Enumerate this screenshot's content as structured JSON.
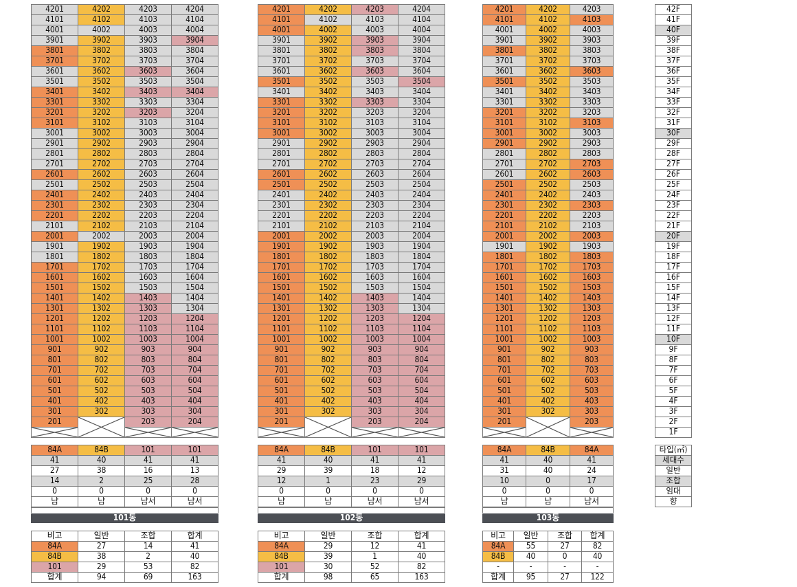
{
  "colors": {
    "orange": "#ef9056",
    "yellow": "#f5bd45",
    "pink": "#dba5a8",
    "gray": "#d9d9d9",
    "white": "#ffffff",
    "dark": "#4c4f55"
  },
  "buildings": [
    {
      "name": "101동",
      "units": {
        "42": [
          "g",
          "y",
          "g",
          "g"
        ],
        "41": [
          "g",
          "y",
          "g",
          "g"
        ],
        "40": [
          "g",
          "g",
          "g",
          "g"
        ],
        "39": [
          "g",
          "y",
          "g",
          "p"
        ],
        "38": [
          "o",
          "y",
          "g",
          "g"
        ],
        "37": [
          "o",
          "y",
          "g",
          "g"
        ],
        "36": [
          "g",
          "y",
          "p",
          "g"
        ],
        "35": [
          "g",
          "y",
          "g",
          "g"
        ],
        "34": [
          "o",
          "y",
          "p",
          "p"
        ],
        "33": [
          "o",
          "y",
          "g",
          "g"
        ],
        "32": [
          "o",
          "y",
          "p",
          "g"
        ],
        "31": [
          "o",
          "y",
          "g",
          "g"
        ],
        "30": [
          "g",
          "y",
          "g",
          "g"
        ],
        "29": [
          "g",
          "y",
          "g",
          "g"
        ],
        "28": [
          "g",
          "y",
          "g",
          "g"
        ],
        "27": [
          "g",
          "y",
          "g",
          "g"
        ],
        "26": [
          "o",
          "y",
          "g",
          "g"
        ],
        "25": [
          "g",
          "y",
          "g",
          "g"
        ],
        "24": [
          "o",
          "y",
          "g",
          "g"
        ],
        "23": [
          "o",
          "y",
          "g",
          "g"
        ],
        "22": [
          "o",
          "y",
          "g",
          "g"
        ],
        "21": [
          "g",
          "y",
          "g",
          "g"
        ],
        "20": [
          "o",
          "g",
          "g",
          "g"
        ],
        "19": [
          "g",
          "y",
          "g",
          "g"
        ],
        "18": [
          "g",
          "y",
          "g",
          "g"
        ],
        "17": [
          "o",
          "y",
          "g",
          "g"
        ],
        "16": [
          "o",
          "y",
          "g",
          "g"
        ],
        "15": [
          "o",
          "y",
          "g",
          "g"
        ],
        "14": [
          "o",
          "y",
          "p",
          "g"
        ],
        "13": [
          "o",
          "y",
          "p",
          "g"
        ],
        "12": [
          "o",
          "y",
          "p",
          "p"
        ],
        "11": [
          "o",
          "y",
          "p",
          "p"
        ],
        "10": [
          "o",
          "y",
          "p",
          "p"
        ],
        "9": [
          "o",
          "y",
          "p",
          "p"
        ],
        "8": [
          "o",
          "y",
          "p",
          "p"
        ],
        "7": [
          "o",
          "y",
          "p",
          "p"
        ],
        "6": [
          "o",
          "y",
          "p",
          "p"
        ],
        "5": [
          "o",
          "y",
          "p",
          "p"
        ],
        "4": [
          "o",
          "y",
          "p",
          "p"
        ],
        "3": [
          "o",
          "y",
          "p",
          "p"
        ],
        "2": [
          "o",
          "x",
          "p",
          "p"
        ],
        "1": [
          "x",
          "x",
          "x",
          "x"
        ]
      },
      "type_rows": [
        [
          "84A",
          "84B",
          "101",
          "101"
        ],
        [
          "41",
          "40",
          "41",
          "41"
        ],
        [
          "27",
          "38",
          "16",
          "13"
        ],
        [
          "14",
          "2",
          "25",
          "28"
        ],
        [
          "0",
          "0",
          "0",
          "0"
        ],
        [
          "남",
          "남",
          "남서",
          "남서"
        ]
      ],
      "summary_header": [
        "비고",
        "일반",
        "조합",
        "합계"
      ],
      "summary_rows": [
        [
          "84A",
          "27",
          "14",
          "41"
        ],
        [
          "84B",
          "38",
          "2",
          "40"
        ],
        [
          "101",
          "29",
          "53",
          "82"
        ],
        [
          "합계",
          "94",
          "69",
          "163"
        ]
      ]
    },
    {
      "name": "102동",
      "units": {
        "42": [
          "o",
          "y",
          "p",
          "g"
        ],
        "41": [
          "o",
          "g",
          "g",
          "g"
        ],
        "40": [
          "o",
          "y",
          "g",
          "g"
        ],
        "39": [
          "g",
          "y",
          "p",
          "g"
        ],
        "38": [
          "g",
          "y",
          "p",
          "g"
        ],
        "37": [
          "g",
          "y",
          "g",
          "g"
        ],
        "36": [
          "g",
          "y",
          "p",
          "g"
        ],
        "35": [
          "o",
          "y",
          "g",
          "p"
        ],
        "34": [
          "g",
          "y",
          "g",
          "g"
        ],
        "33": [
          "o",
          "y",
          "p",
          "g"
        ],
        "32": [
          "o",
          "y",
          "g",
          "g"
        ],
        "31": [
          "o",
          "y",
          "g",
          "g"
        ],
        "30": [
          "o",
          "y",
          "g",
          "g"
        ],
        "29": [
          "g",
          "y",
          "g",
          "g"
        ],
        "28": [
          "g",
          "y",
          "g",
          "g"
        ],
        "27": [
          "g",
          "y",
          "g",
          "g"
        ],
        "26": [
          "o",
          "y",
          "g",
          "g"
        ],
        "25": [
          "o",
          "y",
          "g",
          "g"
        ],
        "24": [
          "g",
          "y",
          "g",
          "g"
        ],
        "23": [
          "g",
          "y",
          "g",
          "g"
        ],
        "22": [
          "g",
          "y",
          "g",
          "g"
        ],
        "21": [
          "g",
          "y",
          "g",
          "g"
        ],
        "20": [
          "o",
          "y",
          "g",
          "g"
        ],
        "19": [
          "o",
          "y",
          "g",
          "g"
        ],
        "18": [
          "o",
          "y",
          "g",
          "g"
        ],
        "17": [
          "o",
          "y",
          "g",
          "g"
        ],
        "16": [
          "o",
          "y",
          "g",
          "g"
        ],
        "15": [
          "o",
          "y",
          "g",
          "g"
        ],
        "14": [
          "o",
          "y",
          "p",
          "g"
        ],
        "13": [
          "o",
          "y",
          "p",
          "g"
        ],
        "12": [
          "o",
          "y",
          "p",
          "p"
        ],
        "11": [
          "o",
          "y",
          "p",
          "p"
        ],
        "10": [
          "o",
          "y",
          "p",
          "p"
        ],
        "9": [
          "o",
          "y",
          "p",
          "p"
        ],
        "8": [
          "o",
          "y",
          "p",
          "p"
        ],
        "7": [
          "o",
          "y",
          "p",
          "p"
        ],
        "6": [
          "o",
          "y",
          "p",
          "p"
        ],
        "5": [
          "o",
          "y",
          "p",
          "p"
        ],
        "4": [
          "o",
          "y",
          "p",
          "p"
        ],
        "3": [
          "o",
          "y",
          "p",
          "p"
        ],
        "2": [
          "o",
          "x",
          "p",
          "p"
        ],
        "1": [
          "x",
          "x",
          "x",
          "x"
        ]
      },
      "type_rows": [
        [
          "84A",
          "84B",
          "101",
          "101"
        ],
        [
          "41",
          "40",
          "41",
          "41"
        ],
        [
          "29",
          "39",
          "18",
          "12"
        ],
        [
          "12",
          "1",
          "23",
          "29"
        ],
        [
          "0",
          "0",
          "0",
          "0"
        ],
        [
          "남",
          "남",
          "남서",
          "남서"
        ]
      ],
      "summary_header": [
        "비고",
        "일반",
        "조합",
        "합계"
      ],
      "summary_rows": [
        [
          "84A",
          "29",
          "12",
          "41"
        ],
        [
          "84B",
          "39",
          "1",
          "40"
        ],
        [
          "101",
          "30",
          "52",
          "82"
        ],
        [
          "합계",
          "98",
          "65",
          "163"
        ]
      ]
    },
    {
      "name": "103동",
      "units": {
        "42": [
          "o",
          "y",
          "g"
        ],
        "41": [
          "o",
          "y",
          "o"
        ],
        "40": [
          "g",
          "y",
          "g"
        ],
        "39": [
          "g",
          "y",
          "g"
        ],
        "38": [
          "o",
          "y",
          "g"
        ],
        "37": [
          "g",
          "y",
          "g"
        ],
        "36": [
          "g",
          "y",
          "o"
        ],
        "35": [
          "o",
          "y",
          "g"
        ],
        "34": [
          "g",
          "y",
          "g"
        ],
        "33": [
          "g",
          "y",
          "g"
        ],
        "32": [
          "o",
          "y",
          "g"
        ],
        "31": [
          "o",
          "y",
          "o"
        ],
        "30": [
          "o",
          "y",
          "g"
        ],
        "29": [
          "o",
          "y",
          "g"
        ],
        "28": [
          "g",
          "y",
          "g"
        ],
        "27": [
          "g",
          "y",
          "o"
        ],
        "26": [
          "g",
          "y",
          "o"
        ],
        "25": [
          "o",
          "y",
          "g"
        ],
        "24": [
          "o",
          "y",
          "g"
        ],
        "23": [
          "o",
          "y",
          "o"
        ],
        "22": [
          "o",
          "y",
          "g"
        ],
        "21": [
          "o",
          "y",
          "g"
        ],
        "20": [
          "o",
          "y",
          "o"
        ],
        "19": [
          "g",
          "y",
          "g"
        ],
        "18": [
          "o",
          "y",
          "o"
        ],
        "17": [
          "o",
          "y",
          "o"
        ],
        "16": [
          "o",
          "y",
          "o"
        ],
        "15": [
          "o",
          "y",
          "o"
        ],
        "14": [
          "o",
          "y",
          "o"
        ],
        "13": [
          "o",
          "y",
          "o"
        ],
        "12": [
          "o",
          "y",
          "o"
        ],
        "11": [
          "o",
          "y",
          "o"
        ],
        "10": [
          "o",
          "y",
          "o"
        ],
        "9": [
          "o",
          "y",
          "o"
        ],
        "8": [
          "o",
          "y",
          "o"
        ],
        "7": [
          "o",
          "y",
          "o"
        ],
        "6": [
          "o",
          "y",
          "o"
        ],
        "5": [
          "o",
          "y",
          "o"
        ],
        "4": [
          "o",
          "y",
          "o"
        ],
        "3": [
          "o",
          "y",
          "o"
        ],
        "2": [
          "o",
          "x",
          "o"
        ],
        "1": [
          "x",
          "x",
          "x"
        ]
      },
      "type_rows": [
        [
          "84A",
          "84B",
          "84A"
        ],
        [
          "41",
          "40",
          "41"
        ],
        [
          "31",
          "40",
          "24"
        ],
        [
          "10",
          "0",
          "17"
        ],
        [
          "0",
          "0",
          "0"
        ],
        [
          "남",
          "남",
          "남서"
        ]
      ],
      "summary_header": [
        "비고",
        "일반",
        "조합",
        "합계"
      ],
      "summary_rows": [
        [
          "84A",
          "55",
          "27",
          "82"
        ],
        [
          "84B",
          "40",
          "0",
          "40"
        ],
        [
          "-",
          "-",
          "-",
          "-"
        ],
        [
          "합계",
          "95",
          "27",
          "122"
        ]
      ]
    }
  ],
  "floor_labels": [
    "42F",
    "41F",
    "40F",
    "39F",
    "38F",
    "37F",
    "36F",
    "35F",
    "34F",
    "33F",
    "32F",
    "31F",
    "30F",
    "29F",
    "28F",
    "27F",
    "26F",
    "25F",
    "24F",
    "23F",
    "22F",
    "21F",
    "20F",
    "19F",
    "18F",
    "17F",
    "16F",
    "15F",
    "14F",
    "13F",
    "12F",
    "11F",
    "10F",
    "9F",
    "8F",
    "7F",
    "6F",
    "5F",
    "4F",
    "3F",
    "2F",
    "1F"
  ],
  "floor_labels_shaded": [
    "40F",
    "30F",
    "20F",
    "10F"
  ],
  "legend_labels": [
    "타입(㎡)",
    "세대수",
    "일반",
    "조합",
    "임대",
    "향"
  ]
}
